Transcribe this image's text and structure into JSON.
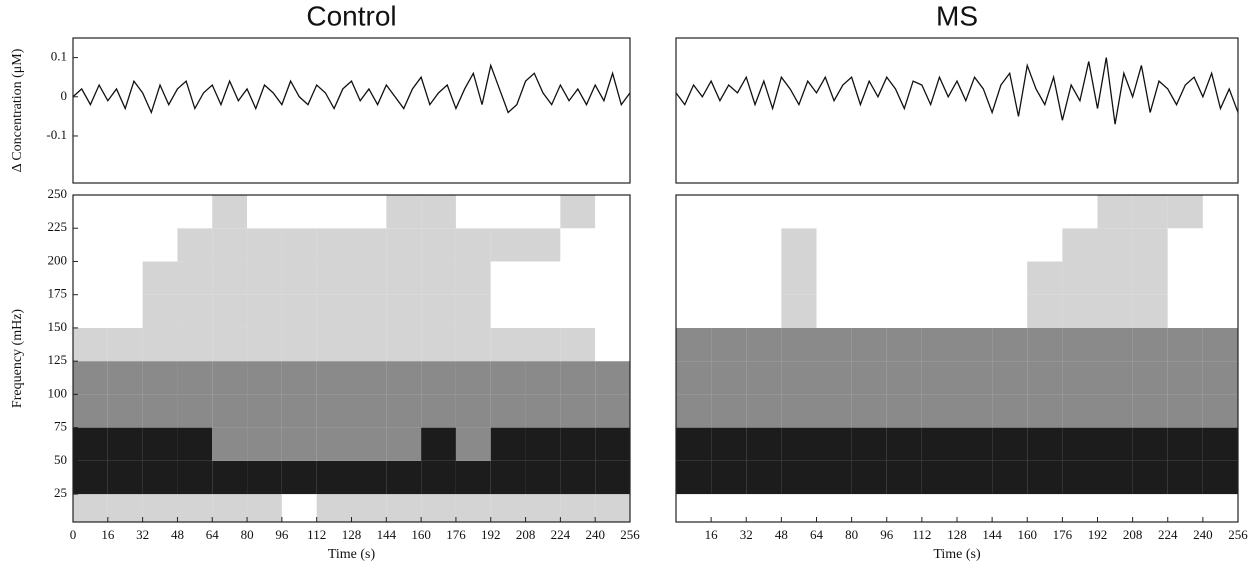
{
  "chart_data": [
    {
      "type": "line",
      "title": "Control",
      "y_label": "Δ Concentration (μM)",
      "color": "#111111",
      "x": [
        0,
        4,
        8,
        12,
        16,
        20,
        24,
        28,
        32,
        36,
        40,
        44,
        48,
        52,
        56,
        60,
        64,
        68,
        72,
        76,
        80,
        84,
        88,
        92,
        96,
        100,
        104,
        108,
        112,
        116,
        120,
        124,
        128,
        132,
        136,
        140,
        144,
        148,
        152,
        156,
        160,
        164,
        168,
        172,
        176,
        180,
        184,
        188,
        192,
        196,
        200,
        204,
        208,
        212,
        216,
        220,
        224,
        228,
        232,
        236,
        240,
        244,
        248,
        252,
        256
      ],
      "values": [
        0.0,
        0.02,
        -0.02,
        0.03,
        -0.01,
        0.02,
        -0.03,
        0.04,
        0.01,
        -0.04,
        0.03,
        -0.02,
        0.02,
        0.04,
        -0.03,
        0.01,
        0.03,
        -0.02,
        0.04,
        -0.01,
        0.02,
        -0.03,
        0.03,
        0.01,
        -0.02,
        0.04,
        0.0,
        -0.02,
        0.03,
        0.01,
        -0.03,
        0.02,
        0.04,
        -0.01,
        0.02,
        -0.02,
        0.03,
        0.0,
        -0.03,
        0.02,
        0.05,
        -0.02,
        0.01,
        0.03,
        -0.03,
        0.02,
        0.06,
        -0.02,
        0.08,
        0.02,
        -0.04,
        -0.02,
        0.04,
        0.06,
        0.01,
        -0.02,
        0.03,
        -0.01,
        0.02,
        -0.02,
        0.03,
        -0.01,
        0.06,
        -0.02,
        0.01
      ],
      "xlim": [
        0,
        256
      ],
      "ylim": [
        -0.22,
        0.15
      ],
      "yticks": [
        0.1,
        0,
        -0.1
      ]
    },
    {
      "type": "heatmap",
      "y_label": "Frequency (mHz)",
      "x_label": "Time (s)",
      "colors": [
        "#ffffff",
        "#d4d4d4",
        "#8a8a8a",
        "#1c1c1c"
      ],
      "x_edges": [
        0,
        16,
        32,
        48,
        64,
        80,
        96,
        112,
        128,
        144,
        160,
        176,
        192,
        208,
        224,
        240,
        256
      ],
      "y_edges": [
        4,
        25,
        50,
        75,
        100,
        125,
        150,
        175,
        200,
        225,
        250
      ],
      "values": [
        [
          1,
          1,
          1,
          1,
          1,
          1,
          0,
          1,
          1,
          1,
          1,
          1,
          1,
          1,
          1,
          1
        ],
        [
          3,
          3,
          3,
          3,
          3,
          3,
          3,
          3,
          3,
          3,
          3,
          3,
          3,
          3,
          3,
          3
        ],
        [
          3,
          3,
          3,
          3,
          2,
          2,
          2,
          2,
          2,
          2,
          3,
          2,
          3,
          3,
          3,
          3
        ],
        [
          2,
          2,
          2,
          2,
          2,
          2,
          2,
          2,
          2,
          2,
          2,
          2,
          2,
          2,
          2,
          2
        ],
        [
          2,
          2,
          2,
          2,
          2,
          2,
          2,
          2,
          2,
          2,
          2,
          2,
          2,
          2,
          2,
          2
        ],
        [
          1,
          1,
          1,
          1,
          1,
          1,
          1,
          1,
          1,
          1,
          1,
          1,
          1,
          1,
          1,
          0
        ],
        [
          0,
          0,
          1,
          1,
          1,
          1,
          1,
          1,
          1,
          1,
          1,
          1,
          0,
          0,
          0,
          0
        ],
        [
          0,
          0,
          1,
          1,
          1,
          1,
          1,
          1,
          1,
          1,
          1,
          1,
          0,
          0,
          0,
          0
        ],
        [
          0,
          0,
          0,
          1,
          1,
          1,
          1,
          1,
          1,
          1,
          1,
          1,
          1,
          1,
          0,
          0
        ],
        [
          0,
          0,
          0,
          0,
          1,
          0,
          0,
          0,
          0,
          1,
          1,
          0,
          0,
          0,
          1,
          0
        ]
      ],
      "xlim": [
        0,
        256
      ],
      "ylim": [
        4,
        250
      ],
      "xticks": [
        0,
        16,
        32,
        48,
        64,
        80,
        96,
        112,
        128,
        144,
        160,
        176,
        192,
        208,
        224,
        240,
        256
      ],
      "yticks": [
        25,
        50,
        75,
        100,
        125,
        150,
        175,
        200,
        225,
        250
      ]
    },
    {
      "type": "line",
      "title": "MS",
      "color": "#111111",
      "x": [
        0,
        4,
        8,
        12,
        16,
        20,
        24,
        28,
        32,
        36,
        40,
        44,
        48,
        52,
        56,
        60,
        64,
        68,
        72,
        76,
        80,
        84,
        88,
        92,
        96,
        100,
        104,
        108,
        112,
        116,
        120,
        124,
        128,
        132,
        136,
        140,
        144,
        148,
        152,
        156,
        160,
        164,
        168,
        172,
        176,
        180,
        184,
        188,
        192,
        196,
        200,
        204,
        208,
        212,
        216,
        220,
        224,
        228,
        232,
        236,
        240,
        244,
        248,
        252,
        256
      ],
      "values": [
        0.01,
        -0.02,
        0.03,
        0.0,
        0.04,
        -0.01,
        0.03,
        0.01,
        0.05,
        -0.02,
        0.04,
        -0.03,
        0.05,
        0.02,
        -0.02,
        0.04,
        0.01,
        0.05,
        -0.01,
        0.03,
        0.05,
        -0.02,
        0.04,
        0.0,
        0.05,
        0.02,
        -0.03,
        0.04,
        0.03,
        -0.02,
        0.05,
        0.0,
        0.04,
        -0.01,
        0.05,
        0.02,
        -0.04,
        0.03,
        0.06,
        -0.05,
        0.08,
        0.02,
        -0.02,
        0.05,
        -0.06,
        0.03,
        -0.01,
        0.09,
        -0.03,
        0.1,
        -0.07,
        0.06,
        0.0,
        0.08,
        -0.04,
        0.04,
        0.02,
        -0.02,
        0.03,
        0.05,
        0.0,
        0.06,
        -0.03,
        0.02,
        -0.04
      ],
      "xlim": [
        0,
        256
      ],
      "ylim": [
        -0.22,
        0.15
      ]
    },
    {
      "type": "heatmap",
      "x_label": "Time (s)",
      "colors": [
        "#ffffff",
        "#d4d4d4",
        "#8a8a8a",
        "#1c1c1c"
      ],
      "x_edges": [
        0,
        16,
        32,
        48,
        64,
        80,
        96,
        112,
        128,
        144,
        160,
        176,
        192,
        208,
        224,
        240,
        256
      ],
      "y_edges": [
        4,
        25,
        50,
        75,
        100,
        125,
        150,
        175,
        200,
        225,
        250
      ],
      "values": [
        [
          0,
          0,
          0,
          0,
          0,
          0,
          0,
          0,
          0,
          0,
          0,
          0,
          0,
          0,
          0,
          0
        ],
        [
          3,
          3,
          3,
          3,
          3,
          3,
          3,
          3,
          3,
          3,
          3,
          3,
          3,
          3,
          3,
          3
        ],
        [
          3,
          3,
          3,
          3,
          3,
          3,
          3,
          3,
          3,
          3,
          3,
          3,
          3,
          3,
          3,
          3
        ],
        [
          2,
          2,
          2,
          2,
          2,
          2,
          2,
          2,
          2,
          2,
          2,
          2,
          2,
          2,
          2,
          2
        ],
        [
          2,
          2,
          2,
          2,
          2,
          2,
          2,
          2,
          2,
          2,
          2,
          2,
          2,
          2,
          2,
          2
        ],
        [
          2,
          2,
          2,
          2,
          2,
          2,
          2,
          2,
          2,
          2,
          2,
          2,
          2,
          2,
          2,
          2
        ],
        [
          0,
          0,
          0,
          1,
          0,
          0,
          0,
          0,
          0,
          0,
          1,
          1,
          1,
          1,
          0,
          0
        ],
        [
          0,
          0,
          0,
          1,
          0,
          0,
          0,
          0,
          0,
          0,
          1,
          1,
          1,
          1,
          0,
          0
        ],
        [
          0,
          0,
          0,
          1,
          0,
          0,
          0,
          0,
          0,
          0,
          0,
          1,
          1,
          1,
          0,
          0
        ],
        [
          0,
          0,
          0,
          0,
          0,
          0,
          0,
          0,
          0,
          0,
          0,
          0,
          1,
          1,
          1,
          0
        ]
      ],
      "xlim": [
        0,
        256
      ],
      "ylim": [
        4,
        250
      ],
      "xticks": [
        16,
        32,
        48,
        64,
        80,
        96,
        112,
        128,
        144,
        160,
        176,
        192,
        208,
        224,
        240,
        256
      ]
    }
  ]
}
